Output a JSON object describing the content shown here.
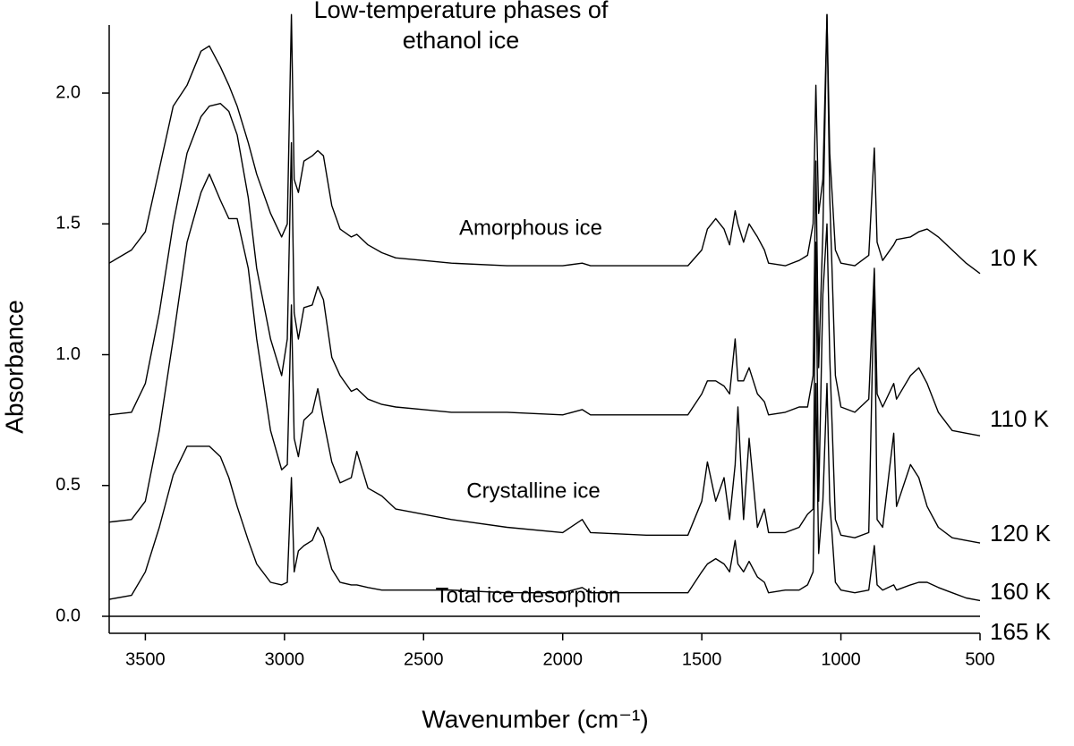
{
  "chart_data": {
    "type": "line",
    "title": "Low-temperature phases of ethanol ice",
    "x_label": "Wavenumber (cm⁻¹)",
    "y_label": "Absorbance",
    "xlim": [
      3630,
      500
    ],
    "ylim": [
      -0.065,
      2.26
    ],
    "xticks": [
      3500,
      3000,
      2500,
      2000,
      1500,
      1000,
      500
    ],
    "yticks": [
      {
        "value": 0,
        "label": "0.0"
      },
      {
        "value": 0.5,
        "label": "0.5"
      },
      {
        "value": 1,
        "label": "1.0"
      },
      {
        "value": 1.5,
        "label": "1.5"
      },
      {
        "value": 2,
        "label": "2.0"
      }
    ],
    "grid": false,
    "annotations": [
      "Amorphous ice",
      "Crystalline ice",
      "Total ice desorption"
    ],
    "x": [
      3630,
      3550,
      3500,
      3450,
      3400,
      3350,
      3300,
      3270,
      3230,
      3200,
      3170,
      3130,
      3100,
      3050,
      3010,
      2990,
      2975,
      2965,
      2950,
      2930,
      2900,
      2880,
      2860,
      2830,
      2800,
      2760,
      2740,
      2700,
      2650,
      2600,
      2500,
      2400,
      2200,
      2000,
      1930,
      1900,
      1700,
      1550,
      1500,
      1480,
      1450,
      1420,
      1400,
      1380,
      1370,
      1350,
      1330,
      1300,
      1275,
      1260,
      1200,
      1150,
      1120,
      1100,
      1090,
      1080,
      1065,
      1050,
      1040,
      1020,
      1000,
      950,
      900,
      880,
      870,
      850,
      810,
      800,
      750,
      720,
      690,
      650,
      600,
      550,
      500
    ],
    "series": [
      {
        "name": "10 K",
        "color": "#000000",
        "values": [
          1.35,
          1.4,
          1.47,
          1.71,
          1.95,
          2.03,
          2.16,
          2.18,
          2.1,
          2.03,
          1.95,
          1.81,
          1.69,
          1.54,
          1.45,
          1.5,
          2.3,
          1.67,
          1.62,
          1.74,
          1.76,
          1.78,
          1.76,
          1.57,
          1.48,
          1.45,
          1.46,
          1.42,
          1.39,
          1.37,
          1.36,
          1.35,
          1.34,
          1.34,
          1.35,
          1.34,
          1.34,
          1.34,
          1.4,
          1.48,
          1.52,
          1.48,
          1.42,
          1.55,
          1.5,
          1.43,
          1.5,
          1.45,
          1.4,
          1.35,
          1.34,
          1.36,
          1.38,
          1.5,
          2.03,
          1.54,
          1.67,
          2.3,
          1.77,
          1.4,
          1.35,
          1.34,
          1.38,
          1.79,
          1.43,
          1.36,
          1.42,
          1.44,
          1.45,
          1.47,
          1.48,
          1.45,
          1.4,
          1.35,
          1.31
        ]
      },
      {
        "name": "110 K",
        "color": "#000000",
        "values": [
          0.77,
          0.78,
          0.89,
          1.16,
          1.5,
          1.77,
          1.91,
          1.95,
          1.96,
          1.93,
          1.84,
          1.6,
          1.33,
          1.06,
          0.92,
          1.06,
          1.81,
          1.16,
          1.06,
          1.18,
          1.19,
          1.26,
          1.21,
          0.99,
          0.92,
          0.86,
          0.87,
          0.83,
          0.81,
          0.8,
          0.79,
          0.78,
          0.78,
          0.77,
          0.79,
          0.77,
          0.77,
          0.77,
          0.85,
          0.9,
          0.9,
          0.88,
          0.85,
          1.06,
          0.9,
          0.9,
          0.95,
          0.85,
          0.82,
          0.77,
          0.78,
          0.8,
          0.8,
          0.92,
          1.74,
          0.95,
          1.47,
          2.3,
          1.6,
          0.92,
          0.8,
          0.78,
          0.83,
          1.33,
          0.85,
          0.8,
          0.89,
          0.83,
          0.92,
          0.95,
          0.89,
          0.78,
          0.71,
          0.7,
          0.69
        ]
      },
      {
        "name": "120 K",
        "color": "#000000",
        "values": [
          0.36,
          0.37,
          0.44,
          0.71,
          1.06,
          1.43,
          1.62,
          1.69,
          1.59,
          1.52,
          1.52,
          1.33,
          1.06,
          0.71,
          0.56,
          0.58,
          1.19,
          0.68,
          0.61,
          0.75,
          0.78,
          0.87,
          0.75,
          0.59,
          0.51,
          0.53,
          0.63,
          0.49,
          0.46,
          0.41,
          0.39,
          0.37,
          0.34,
          0.32,
          0.37,
          0.32,
          0.31,
          0.31,
          0.44,
          0.59,
          0.44,
          0.53,
          0.37,
          0.58,
          0.8,
          0.37,
          0.68,
          0.34,
          0.41,
          0.32,
          0.32,
          0.34,
          0.39,
          0.41,
          1.43,
          0.44,
          1.23,
          1.5,
          0.99,
          0.37,
          0.31,
          0.3,
          0.32,
          1.31,
          0.37,
          0.34,
          0.7,
          0.42,
          0.58,
          0.53,
          0.42,
          0.34,
          0.3,
          0.29,
          0.28
        ]
      },
      {
        "name": "160 K",
        "color": "#000000",
        "values": [
          0.065,
          0.08,
          0.17,
          0.34,
          0.54,
          0.65,
          0.65,
          0.65,
          0.61,
          0.53,
          0.42,
          0.29,
          0.2,
          0.13,
          0.12,
          0.13,
          0.53,
          0.17,
          0.25,
          0.27,
          0.29,
          0.34,
          0.3,
          0.18,
          0.13,
          0.12,
          0.12,
          0.11,
          0.1,
          0.1,
          0.1,
          0.1,
          0.09,
          0.09,
          0.11,
          0.09,
          0.09,
          0.09,
          0.17,
          0.2,
          0.22,
          0.2,
          0.17,
          0.29,
          0.2,
          0.17,
          0.21,
          0.15,
          0.13,
          0.09,
          0.1,
          0.1,
          0.12,
          0.17,
          0.89,
          0.24,
          0.44,
          0.89,
          0.44,
          0.13,
          0.1,
          0.09,
          0.1,
          0.27,
          0.12,
          0.1,
          0.12,
          0.1,
          0.12,
          0.13,
          0.13,
          0.11,
          0.09,
          0.07,
          0.06
        ]
      },
      {
        "name": "165 K",
        "color": "#000000",
        "values": [
          0,
          0,
          0,
          0,
          0,
          0,
          0,
          0,
          0,
          0,
          0,
          0,
          0,
          0,
          0,
          0,
          0,
          0,
          0,
          0,
          0,
          0,
          0,
          0,
          0,
          0,
          0,
          0,
          0,
          0,
          0,
          0,
          0,
          0,
          0,
          0,
          0,
          0,
          0,
          0,
          0,
          0,
          0,
          0,
          0,
          0,
          0,
          0,
          0,
          0,
          0,
          0,
          0,
          0,
          0,
          0,
          0,
          0,
          0,
          0,
          0,
          0,
          0,
          0,
          0,
          0,
          0,
          0,
          0,
          0,
          0,
          0,
          0,
          0,
          0
        ]
      }
    ]
  }
}
